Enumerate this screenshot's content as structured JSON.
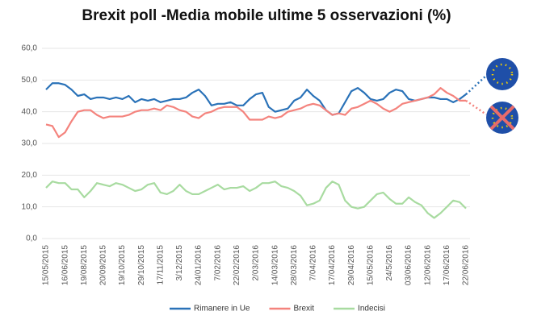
{
  "chart_data": {
    "type": "line",
    "title": "Brexit poll -Media mobile ultime 5 osservazioni (%)",
    "categories": [
      "15/05/2015",
      null,
      null,
      "16/06/2015",
      null,
      null,
      "19/08/2015",
      null,
      null,
      "20/09/2015",
      null,
      null,
      "19/10/2015",
      null,
      null,
      "29/10/2015",
      null,
      null,
      "17/11/2015",
      null,
      null,
      "3/12/2015",
      null,
      null,
      "24/01/2016",
      null,
      null,
      "7/02/2016",
      null,
      null,
      "22/02/2016",
      null,
      null,
      "2/03/2016",
      null,
      null,
      "14/03/2016",
      null,
      null,
      "28/03/2016",
      null,
      null,
      "7/04/2016",
      null,
      null,
      "17/04/2016",
      null,
      null,
      "29/04/2016",
      null,
      null,
      "15/05/2016",
      null,
      null,
      "24/5/2016",
      null,
      null,
      "03/06/2016",
      null,
      null,
      "12/06/2016",
      null,
      null,
      "17/06/2016",
      null,
      null,
      "22/06/2016"
    ],
    "series": [
      {
        "name": "Rimanere in Ue",
        "color": "#2a72b8",
        "values": [
          47,
          49,
          49,
          48.5,
          47,
          45,
          45.5,
          44,
          44.5,
          44.5,
          44,
          44.5,
          44,
          45,
          43,
          44,
          43.5,
          44,
          43,
          43.5,
          44,
          44,
          44.5,
          46,
          47,
          45,
          42,
          42.5,
          42.5,
          43,
          42,
          42,
          44,
          45.5,
          46,
          41.5,
          40,
          40.5,
          41,
          43.5,
          44.5,
          47,
          45,
          43.5,
          40.5,
          39,
          39.5,
          43,
          46.5,
          47.5,
          46,
          44,
          43.5,
          44,
          46,
          47,
          46.5,
          44,
          43.5,
          44,
          44.5,
          44.5,
          44,
          44,
          43,
          44,
          45.5
        ]
      },
      {
        "name": "Brexit",
        "color": "#f4837d",
        "values": [
          36,
          35.5,
          32,
          33.5,
          37,
          40,
          40.5,
          40.5,
          39,
          38,
          38.5,
          38.5,
          38.5,
          39,
          40,
          40.5,
          40.5,
          41,
          40.5,
          42,
          41.5,
          40.5,
          40,
          38.5,
          38,
          39.5,
          40,
          41,
          41.5,
          41.5,
          41.5,
          40,
          37.5,
          37.5,
          37.5,
          38.5,
          38,
          38.5,
          40,
          40.5,
          41,
          42,
          42.5,
          42,
          40.5,
          39,
          39.5,
          39,
          41,
          41.5,
          42.5,
          43.5,
          42.5,
          41,
          40,
          41,
          42.5,
          43,
          43.5,
          44,
          44.5,
          45.5,
          47.5,
          46,
          45,
          43.5,
          43.5
        ]
      },
      {
        "name": "Indecisi",
        "color": "#a8dba0",
        "values": [
          16,
          18,
          17.5,
          17.5,
          15.5,
          15.5,
          13,
          15,
          17.5,
          17,
          16.5,
          17.5,
          17,
          16,
          15,
          15.5,
          17,
          17.5,
          14.5,
          14,
          15,
          17,
          15,
          14,
          14,
          15,
          16,
          17,
          15.5,
          16,
          16,
          16.5,
          15,
          16,
          17.5,
          17.5,
          18,
          16.5,
          16,
          15,
          13.5,
          10.5,
          11,
          12,
          16,
          18,
          17,
          12,
          10,
          9.5,
          10,
          12,
          14,
          14.5,
          12.5,
          11,
          11,
          13,
          11.5,
          10.5,
          8,
          6.5,
          8,
          10,
          12,
          11.5,
          9.5
        ]
      }
    ],
    "ylim": [
      0,
      60
    ],
    "yticks": [
      {
        "value": 0,
        "label": "0,0"
      },
      {
        "value": 10,
        "label": "10,0"
      },
      {
        "value": 20,
        "label": "20,0"
      },
      {
        "value": 30,
        "label": "30,0"
      },
      {
        "value": 40,
        "label": "40,0"
      },
      {
        "value": 50,
        "label": "50,0"
      },
      {
        "value": 60,
        "label": "60,0"
      }
    ],
    "grid": true,
    "legend": "bottom"
  }
}
